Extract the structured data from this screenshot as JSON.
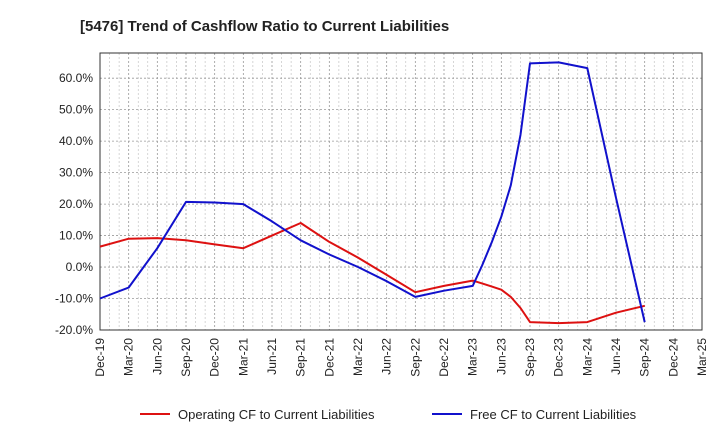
{
  "chart_data": {
    "type": "line",
    "title": "[5476]  Trend of Cashflow Ratio to Current Liabilities",
    "xlabel": "",
    "ylabel": "",
    "ylim": [
      -20,
      68
    ],
    "yticks": [
      "-20.0%",
      "-10.0%",
      "0.0%",
      "10.0%",
      "20.0%",
      "30.0%",
      "40.0%",
      "50.0%",
      "60.0%"
    ],
    "ytick_values": [
      -20,
      -10,
      0,
      10,
      20,
      30,
      40,
      50,
      60
    ],
    "categories": [
      "Dec-19",
      "Mar-20",
      "Jun-20",
      "Sep-20",
      "Dec-20",
      "Mar-21",
      "Jun-21",
      "Sep-21",
      "Dec-21",
      "Mar-22",
      "Jun-22",
      "Sep-22",
      "Dec-22",
      "Mar-23",
      "Jun-23",
      "Sep-23",
      "Dec-23",
      "Mar-24",
      "Jun-24",
      "Sep-24",
      "Dec-24",
      "Mar-25"
    ],
    "grid": true,
    "legend_position": "bottom",
    "series": [
      {
        "name": "Operating CF to Current Liabilities",
        "color": "#dd1111",
        "points": [
          [
            0,
            6.5
          ],
          [
            1,
            9
          ],
          [
            2,
            9.2
          ],
          [
            3,
            8.5
          ],
          [
            4,
            7.2
          ],
          [
            5,
            6
          ],
          [
            6,
            10
          ],
          [
            7,
            14
          ],
          [
            8,
            8
          ],
          [
            9,
            3
          ],
          [
            10,
            -2.5
          ],
          [
            11,
            -8
          ],
          [
            12,
            -6
          ],
          [
            13,
            -4.3
          ],
          [
            13.33,
            -5.2
          ],
          [
            13.67,
            -6.2
          ],
          [
            14,
            -7.2
          ],
          [
            14.33,
            -9.5
          ],
          [
            14.67,
            -13
          ],
          [
            15,
            -17.5
          ],
          [
            16,
            -17.8
          ],
          [
            17,
            -17.5
          ],
          [
            18,
            -14.5
          ],
          [
            19,
            -12.3
          ]
        ]
      },
      {
        "name": "Free CF to Current Liabilities",
        "color": "#1111cc",
        "points": [
          [
            0,
            -10
          ],
          [
            1,
            -6.5
          ],
          [
            2,
            6
          ],
          [
            3,
            20.7
          ],
          [
            4,
            20.5
          ],
          [
            5,
            20
          ],
          [
            6,
            14.5
          ],
          [
            7,
            8.5
          ],
          [
            8,
            4
          ],
          [
            9,
            0
          ],
          [
            10,
            -4.5
          ],
          [
            11,
            -9.5
          ],
          [
            12,
            -7.5
          ],
          [
            13,
            -6
          ],
          [
            13.33,
            0.5
          ],
          [
            13.67,
            8
          ],
          [
            14,
            16
          ],
          [
            14.33,
            26
          ],
          [
            14.67,
            42
          ],
          [
            15,
            64.7
          ],
          [
            16,
            65
          ],
          [
            17,
            63.2
          ],
          [
            18,
            22
          ],
          [
            19,
            -17.5
          ]
        ]
      }
    ]
  }
}
